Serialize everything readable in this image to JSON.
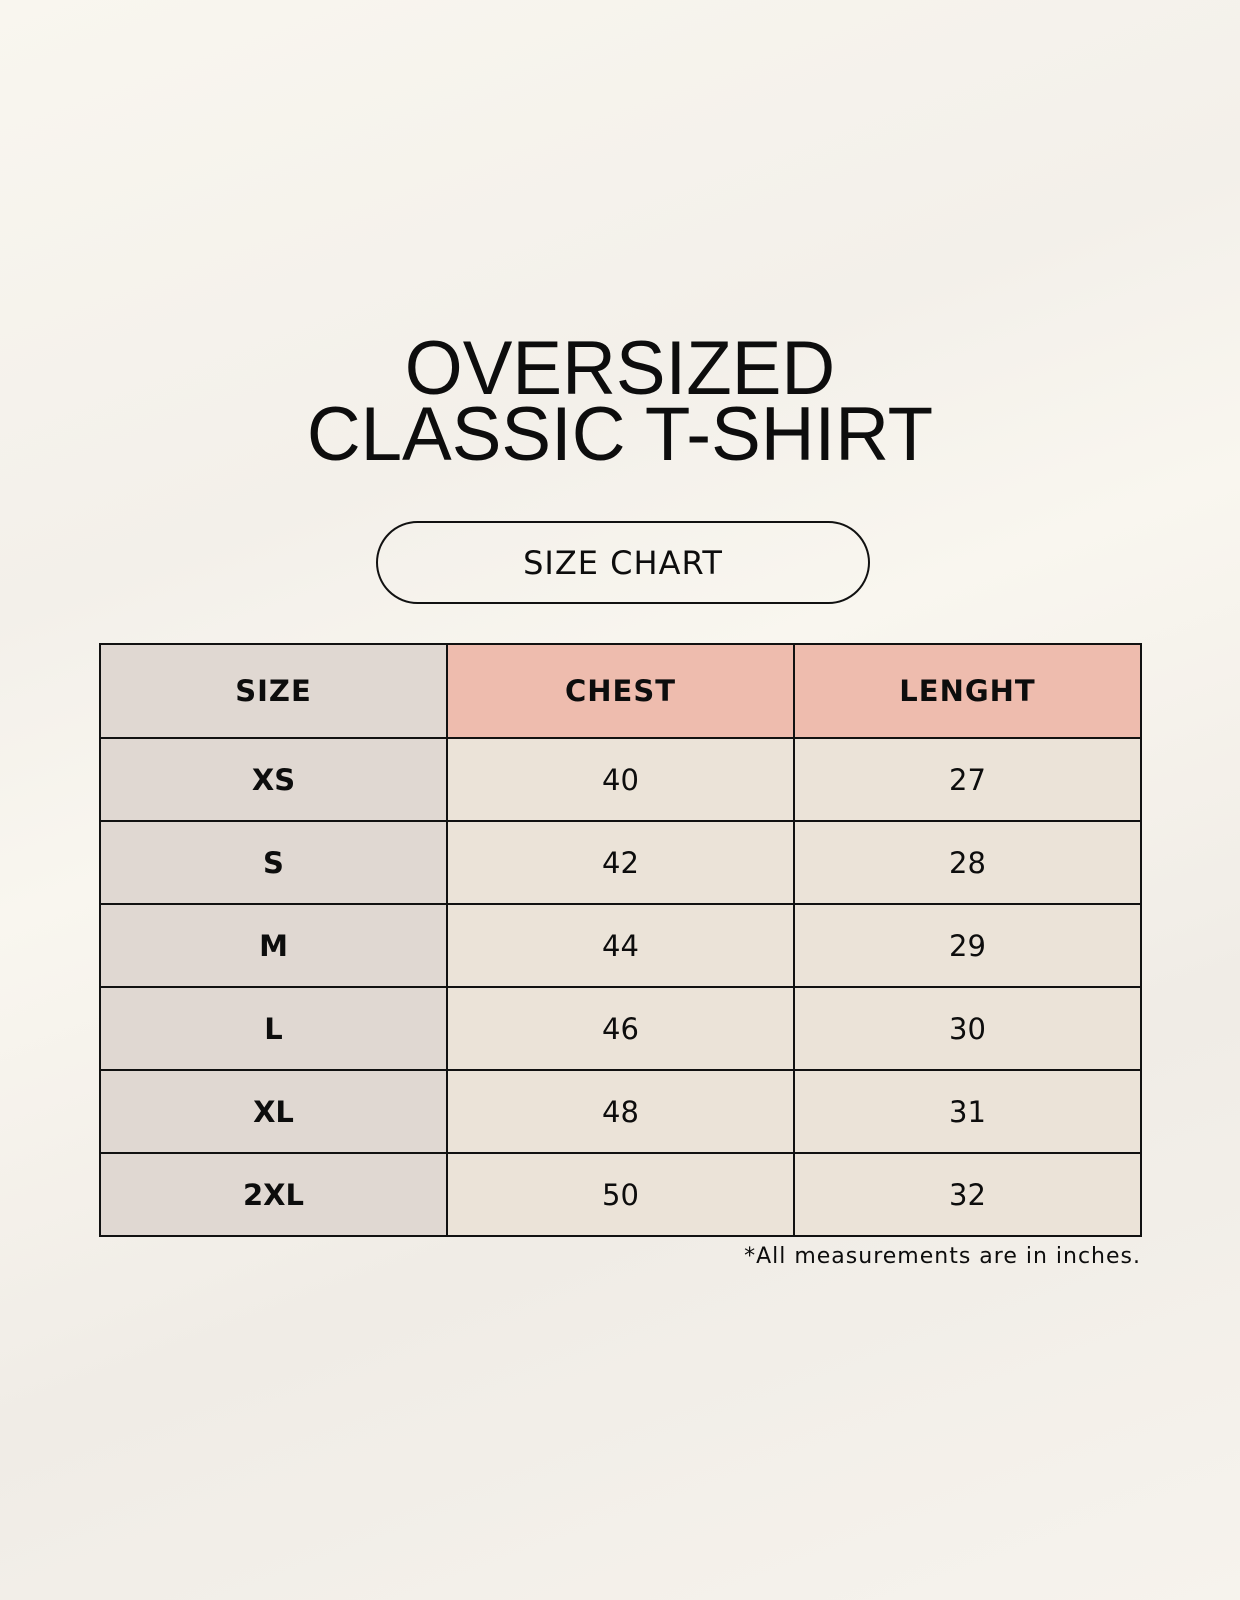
{
  "title_line1": "OVERSIZED",
  "title_line2": "CLASSIC T-SHIRT",
  "badge": "SIZE CHART",
  "table": {
    "headers": [
      "SIZE",
      "CHEST",
      "LENGHT"
    ],
    "rows": [
      [
        "XS",
        "40",
        "27"
      ],
      [
        "S",
        "42",
        "28"
      ],
      [
        "M",
        "44",
        "29"
      ],
      [
        "L",
        "46",
        "30"
      ],
      [
        "XL",
        "48",
        "31"
      ],
      [
        "2XL",
        "50",
        "32"
      ]
    ]
  },
  "footnote": "*All measurements are in inches.",
  "colors": {
    "size_column": "#e0d8d2",
    "header_accent": "#eebcae",
    "value_cells": "#ebe3d8"
  }
}
